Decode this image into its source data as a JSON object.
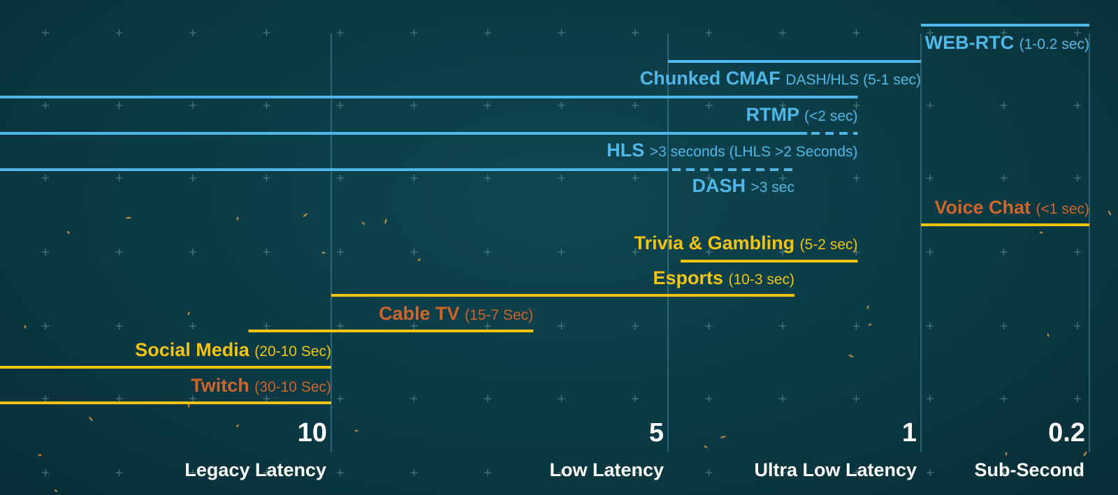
{
  "chart_data": {
    "type": "range-bar",
    "axis": {
      "scale": "latency-seconds",
      "ticks": [
        {
          "value": 10,
          "label": "10"
        },
        {
          "value": 5,
          "label": "5"
        },
        {
          "value": 1,
          "label": "1"
        },
        {
          "value": 0.2,
          "label": "0.2"
        }
      ]
    },
    "zones": [
      {
        "name": "Legacy Latency"
      },
      {
        "name": "Low Latency"
      },
      {
        "name": "Ultra Low Latency"
      },
      {
        "name": "Sub-Second"
      }
    ],
    "protocols": [
      {
        "name": "WEB-RTC",
        "detail": "(1-0.2 sec)"
      },
      {
        "name": "Chunked CMAF",
        "detail": "DASH/HLS  (5-1 sec)"
      },
      {
        "name": "RTMP",
        "detail": "(<2 sec)"
      },
      {
        "name": "HLS",
        "detail": ">3 seconds (LHLS >2 Seconds)"
      },
      {
        "name": "DASH",
        "detail": " >3 sec"
      }
    ],
    "use_cases": [
      {
        "name": "Voice Chat",
        "detail": "(<1 sec)"
      },
      {
        "name": "Trivia & Gambling",
        "detail": "(5-2 sec)"
      },
      {
        "name": "Esports",
        "detail": "(10-3 sec)"
      },
      {
        "name": "Cable TV",
        "detail": "(15-7 Sec)"
      },
      {
        "name": "Social Media",
        "detail": "(20-10 Sec)"
      },
      {
        "name": "Twitch",
        "detail": "(30-10 Sec)"
      }
    ],
    "colors": {
      "protocol": "#4fb8e8",
      "use_case_yellow": "#f2c40f",
      "use_case_orange": "#d9691f",
      "label_orange": "#d0652a",
      "axis_text": "#ffffff",
      "divider": "#5aaed4",
      "background": "#0a3a44"
    }
  }
}
